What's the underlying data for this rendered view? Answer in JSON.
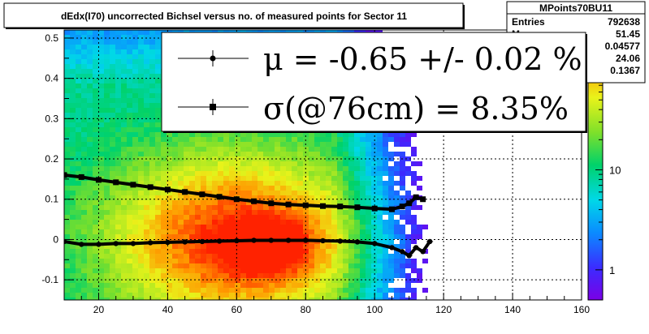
{
  "title": "dEdx(I70) uncorrected Bichsel versus no. of measured points for Sector 11",
  "stats": {
    "name": "MPoints70BU11",
    "rows": [
      {
        "label": "Entries",
        "value": "792638"
      },
      {
        "label": "Mean x",
        "value": "51.45"
      },
      {
        "label": "Mean y",
        "value": "0.04577"
      },
      {
        "label": "RMS x",
        "value": "24.06"
      },
      {
        "label": "RMS y",
        "value": "0.1367"
      }
    ]
  },
  "legend": {
    "mu_text": "μ  = -0.65 +/-  0.02 %",
    "sigma_text": "σ(@76cm) =  8.35%"
  },
  "colorbar": {
    "scale": "log",
    "range": [
      0.5,
      250
    ],
    "ticks": [
      {
        "value": 1,
        "label": "1"
      },
      {
        "value": 10,
        "label": "10"
      },
      {
        "value": 100,
        "label": "10",
        "exp": "2"
      }
    ]
  },
  "chart_data": {
    "type": "heatmap",
    "title": "dEdx(I70) uncorrected Bichsel versus no. of measured points for Sector 11",
    "xlim": [
      10,
      160
    ],
    "ylim": [
      -0.15,
      0.52
    ],
    "x_ticks": [
      20,
      40,
      60,
      80,
      100,
      120,
      140,
      160
    ],
    "y_ticks": [
      -0.1,
      0,
      0.1,
      0.2,
      0.3,
      0.4,
      0.5
    ],
    "grid": true,
    "colorscale": "rainbow",
    "series": [
      {
        "name": "mu",
        "marker": "circle",
        "x": [
          10,
          15,
          20,
          25,
          30,
          35,
          40,
          45,
          50,
          55,
          60,
          65,
          70,
          75,
          80,
          85,
          90,
          95,
          100,
          105,
          108,
          110,
          112,
          114,
          116
        ],
        "y": [
          -0.005,
          -0.012,
          -0.012,
          -0.01,
          -0.01,
          -0.008,
          -0.007,
          -0.006,
          -0.005,
          -0.004,
          -0.003,
          -0.002,
          -0.002,
          -0.002,
          -0.002,
          -0.003,
          -0.004,
          -0.006,
          -0.01,
          -0.02,
          -0.03,
          -0.04,
          -0.02,
          -0.03,
          -0.005
        ]
      },
      {
        "name": "sigma",
        "marker": "square",
        "x": [
          10,
          15,
          20,
          25,
          30,
          35,
          40,
          45,
          50,
          55,
          60,
          65,
          70,
          75,
          80,
          85,
          90,
          95,
          100,
          105,
          108,
          110,
          112,
          114
        ],
        "y": [
          0.16,
          0.155,
          0.148,
          0.142,
          0.136,
          0.13,
          0.124,
          0.118,
          0.112,
          0.106,
          0.1,
          0.095,
          0.09,
          0.087,
          0.085,
          0.083,
          0.082,
          0.08,
          0.077,
          0.075,
          0.082,
          0.09,
          0.105,
          0.1
        ]
      }
    ]
  }
}
